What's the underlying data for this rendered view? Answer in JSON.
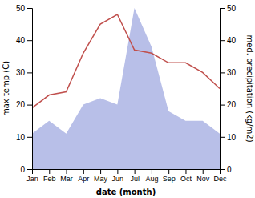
{
  "chart_data": {
    "type": "area",
    "xlabel": "date (month)",
    "ylabel": "max temp (C)",
    "y2label": "med. precipitation (kg/m2)",
    "categories": [
      "Jan",
      "Feb",
      "Mar",
      "Apr",
      "May",
      "Jun",
      "Jul",
      "Aug",
      "Sep",
      "Oct",
      "Nov",
      "Dec"
    ],
    "series": [
      {
        "type": "area",
        "color": "#b8bfe8",
        "values": [
          11,
          15,
          11,
          20,
          22,
          20,
          50,
          38,
          18,
          15,
          15,
          11
        ]
      },
      {
        "type": "line",
        "color": "#c0504d",
        "axis": "y2",
        "values": [
          19,
          23,
          24,
          36,
          45,
          48,
          37,
          36,
          33,
          33,
          30,
          25
        ]
      }
    ],
    "ylim": [
      0,
      50
    ],
    "yticks": [
      0,
      10,
      20,
      30,
      40,
      50
    ],
    "y2lim": [
      0,
      50
    ],
    "y2ticks": [
      0,
      10,
      20,
      30,
      40,
      50
    ]
  }
}
